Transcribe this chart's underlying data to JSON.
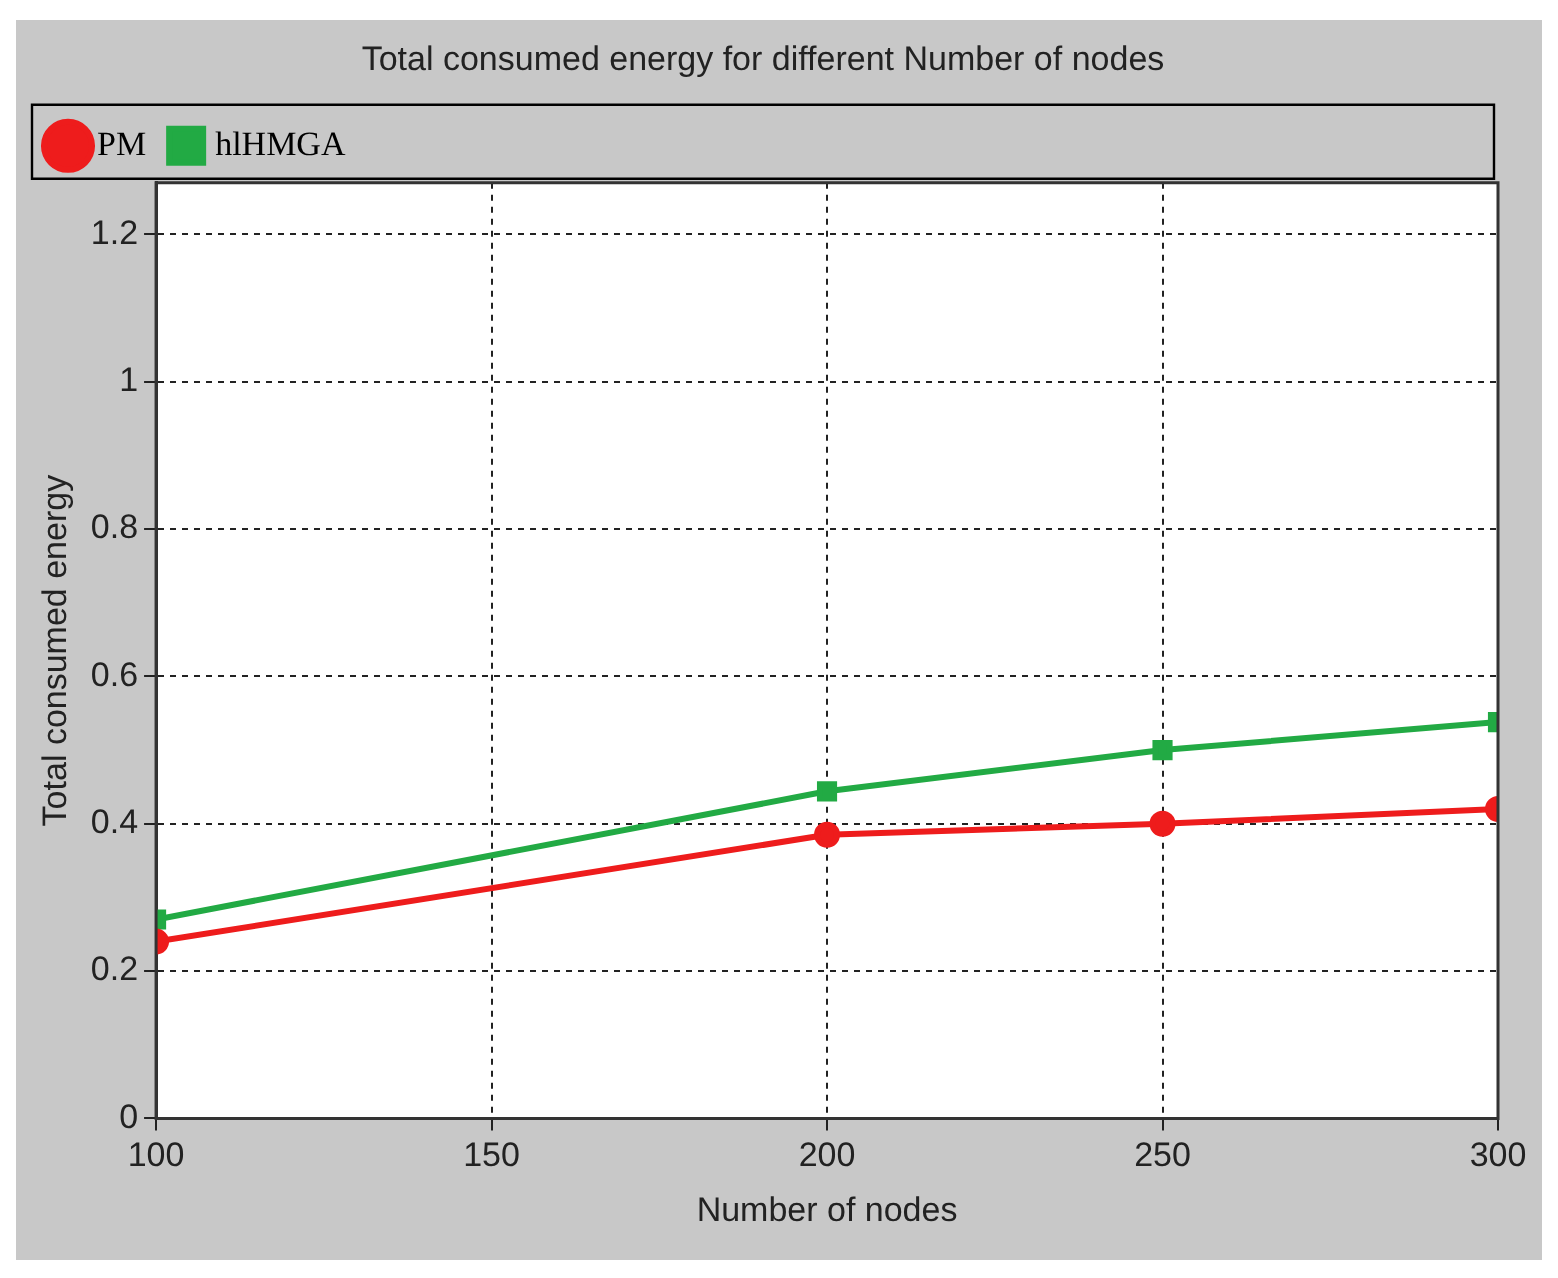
{
  "chart_data": {
    "type": "line",
    "title": "Total consumed energy for different Number of nodes",
    "xlabel": "Number of nodes",
    "ylabel": "Total consumed energy",
    "x": [
      100,
      200,
      250,
      300
    ],
    "xlim": [
      100,
      300
    ],
    "xticks": [
      100,
      150,
      200,
      250,
      300
    ],
    "ylim": [
      0,
      1.27
    ],
    "yticks": [
      0,
      0.2,
      0.4,
      0.6,
      0.8,
      1,
      1.2
    ],
    "grid": true,
    "legend": "top left",
    "line_style": "solid",
    "series": [
      {
        "name": "PM",
        "color": "#ee1c1c",
        "marker": "circle",
        "values": [
          0.24,
          0.385,
          0.4,
          0.42
        ]
      },
      {
        "name": "hlHMGA",
        "color": "#22aa44",
        "marker": "square",
        "values": [
          0.27,
          0.444,
          0.5,
          0.538
        ]
      }
    ]
  }
}
